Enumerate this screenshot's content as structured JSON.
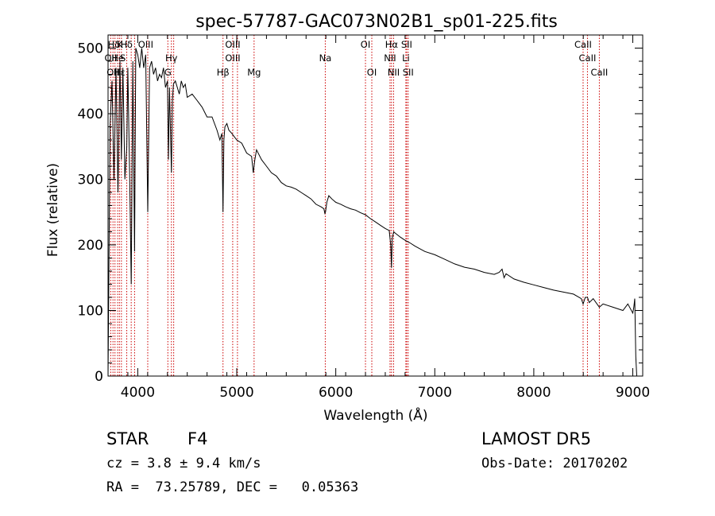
{
  "chart_data": {
    "type": "line",
    "title": "spec-57787-GAC073N02B1_sp01-225.fits",
    "xlabel": "Wavelength (Å)",
    "ylabel": "Flux (relative)",
    "xlim": [
      3700,
      9100
    ],
    "ylim": [
      0,
      520
    ],
    "xticks": [
      4000,
      5000,
      6000,
      7000,
      8000,
      9000
    ],
    "yticks": [
      0,
      100,
      200,
      300,
      400,
      500
    ],
    "grid": false,
    "line_color": "#000000",
    "marker_color": "#cc0000",
    "series": [
      {
        "x": [
          3700,
          3720,
          3740,
          3760,
          3780,
          3800,
          3820,
          3835,
          3850,
          3870,
          3889,
          3900,
          3920,
          3934,
          3950,
          3968,
          3980,
          4000,
          4020,
          4040,
          4060,
          4080,
          4101,
          4120,
          4140,
          4160,
          4180,
          4200,
          4220,
          4240,
          4260,
          4280,
          4300,
          4310,
          4320,
          4340,
          4350,
          4360,
          4380,
          4400,
          4420,
          4440,
          4460,
          4480,
          4500,
          4550,
          4600,
          4650,
          4700,
          4750,
          4800,
          4830,
          4850,
          4861,
          4870,
          4880,
          4900,
          4920,
          4950,
          5000,
          5050,
          5100,
          5150,
          5167,
          5183,
          5200,
          5250,
          5300,
          5350,
          5400,
          5450,
          5500,
          5550,
          5600,
          5650,
          5700,
          5750,
          5800,
          5850,
          5880,
          5890,
          5896,
          5910,
          5930,
          5960,
          6000,
          6050,
          6100,
          6150,
          6200,
          6250,
          6300,
          6350,
          6400,
          6450,
          6500,
          6540,
          6555,
          6563,
          6570,
          6585,
          6600,
          6650,
          6700,
          6750,
          6800,
          6900,
          7000,
          7100,
          7200,
          7300,
          7400,
          7500,
          7600,
          7650,
          7680,
          7700,
          7720,
          7800,
          7900,
          8000,
          8100,
          8200,
          8300,
          8400,
          8480,
          8498,
          8520,
          8542,
          8560,
          8600,
          8662,
          8700,
          8800,
          8900,
          8950,
          9000,
          9010,
          9020,
          9030,
          9040
        ],
        "y": [
          0,
          380,
          450,
          300,
          470,
          280,
          480,
          330,
          470,
          300,
          350,
          470,
          290,
          140,
          480,
          190,
          500,
          490,
          470,
          500,
          470,
          490,
          250,
          470,
          480,
          460,
          470,
          450,
          460,
          455,
          470,
          440,
          450,
          330,
          440,
          310,
          420,
          445,
          450,
          440,
          430,
          450,
          440,
          445,
          425,
          430,
          420,
          410,
          395,
          395,
          375,
          360,
          370,
          250,
          360,
          380,
          385,
          375,
          370,
          360,
          355,
          340,
          335,
          310,
          330,
          345,
          330,
          320,
          310,
          305,
          295,
          290,
          288,
          285,
          280,
          275,
          270,
          262,
          258,
          255,
          248,
          250,
          265,
          275,
          270,
          265,
          262,
          258,
          255,
          253,
          249,
          246,
          240,
          235,
          230,
          225,
          222,
          200,
          165,
          210,
          220,
          218,
          212,
          207,
          203,
          198,
          190,
          185,
          178,
          171,
          166,
          163,
          158,
          155,
          158,
          163,
          150,
          156,
          148,
          143,
          139,
          135,
          131,
          128,
          125,
          118,
          110,
          120,
          120,
          112,
          118,
          105,
          110,
          105,
          100,
          110,
          96,
          105,
          118,
          30,
          0
        ]
      }
    ],
    "spectral_lines": [
      {
        "label": "Hδ",
        "x": 3760,
        "row": 1
      },
      {
        "label": "K",
        "x": 3820,
        "row": 1
      },
      {
        "label": "H",
        "x": 3860,
        "row": 1
      },
      {
        "label": "δ",
        "x": 3920,
        "row": 1
      },
      {
        "label": "OIII",
        "x": 4080,
        "row": 1
      },
      {
        "label": "OII",
        "x": 3727,
        "row": 2
      },
      {
        "label": "He",
        "x": 3797,
        "row": 2
      },
      {
        "label": "S",
        "x": 3850,
        "row": 2
      },
      {
        "label": "Hγ",
        "x": 4340,
        "row": 2
      },
      {
        "label": "OII",
        "x": 3750,
        "row": 3
      },
      {
        "label": "Hε",
        "x": 3815,
        "row": 3
      },
      {
        "label": "G",
        "x": 4304,
        "row": 3
      },
      {
        "label": "OIII",
        "x": 4960,
        "row": 1
      },
      {
        "label": "OIII",
        "x": 4960,
        "row": 2
      },
      {
        "label": "Hβ",
        "x": 4861,
        "row": 3
      },
      {
        "label": "Mg",
        "x": 5175,
        "row": 3
      },
      {
        "label": "Na",
        "x": 5894,
        "row": 2
      },
      {
        "label": "OI",
        "x": 6300,
        "row": 1
      },
      {
        "label": "OI",
        "x": 6364,
        "row": 3
      },
      {
        "label": "Hα",
        "x": 6563,
        "row": 1
      },
      {
        "label": "SII",
        "x": 6716,
        "row": 1
      },
      {
        "label": "NII",
        "x": 6548,
        "row": 2
      },
      {
        "label": "Li",
        "x": 6708,
        "row": 2
      },
      {
        "label": "NII",
        "x": 6584,
        "row": 3
      },
      {
        "label": "SII",
        "x": 6731,
        "row": 3
      },
      {
        "label": "CaII",
        "x": 8498,
        "row": 1
      },
      {
        "label": "CaII",
        "x": 8542,
        "row": 2
      },
      {
        "label": "CaII",
        "x": 8662,
        "row": 3
      }
    ],
    "marker_lines_x": [
      3727,
      3750,
      3770,
      3797,
      3815,
      3835,
      3889,
      3934,
      3968,
      4101,
      4304,
      4340,
      4363,
      4861,
      4959,
      5007,
      5175,
      5894,
      6300,
      6364,
      6548,
      6563,
      6584,
      6708,
      6716,
      6731,
      8498,
      8542,
      8662
    ]
  },
  "footer": {
    "object_class": "STAR",
    "subclass": "F4",
    "redshift": "cz = 3.8 ± 9.4 km/s",
    "coords": "RA =  73.25789, DEC =   0.05363",
    "survey": "LAMOST DR5",
    "obs_date": "Obs-Date: 20170202"
  }
}
